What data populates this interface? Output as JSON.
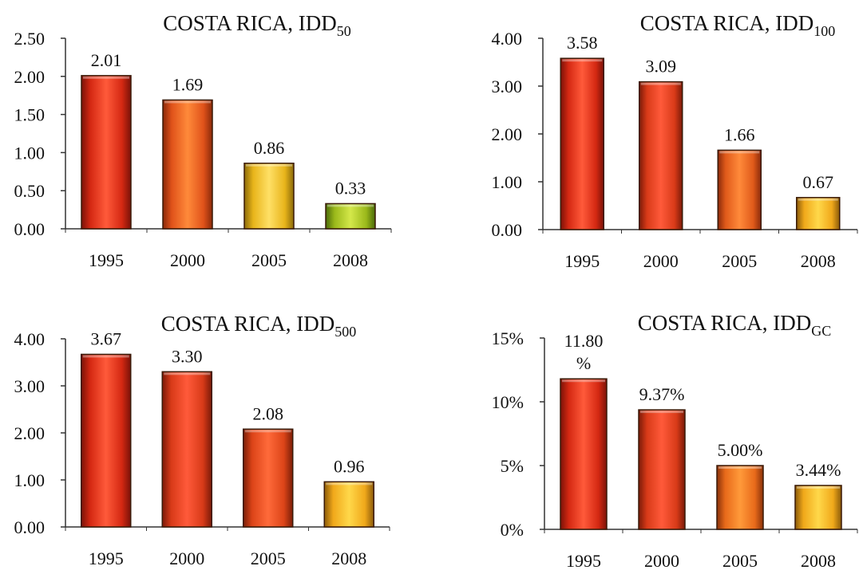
{
  "chart_data": [
    {
      "type": "bar",
      "title": "COSTA RICA, IDD",
      "title_subscript": "50",
      "categories": [
        "1995",
        "2000",
        "2005",
        "2008"
      ],
      "values": [
        2.01,
        1.69,
        0.86,
        0.33
      ],
      "value_labels": [
        "2.01",
        "1.69",
        "0.86",
        "0.33"
      ],
      "yticks": [
        0,
        0.5,
        1.0,
        1.5,
        2.0,
        2.5
      ],
      "ytick_labels": [
        "0.00",
        "0.50",
        "1.00",
        "1.50",
        "2.00",
        "2.50"
      ],
      "ylim": [
        0,
        2.5
      ],
      "grid": false,
      "bar_colors": [
        [
          "#ff5a3a",
          "#d42812",
          "#7a1208"
        ],
        [
          "#ff8a3a",
          "#e0521a",
          "#8a2a0a"
        ],
        [
          "#ffe066",
          "#e8b41a",
          "#8a6a0a"
        ],
        [
          "#d4e84a",
          "#9ab81a",
          "#4a6a0a"
        ]
      ]
    },
    {
      "type": "bar",
      "title": "COSTA RICA, IDD",
      "title_subscript": "100",
      "categories": [
        "1995",
        "2000",
        "2005",
        "2008"
      ],
      "values": [
        3.58,
        3.09,
        1.66,
        0.67
      ],
      "value_labels": [
        "3.58",
        "3.09",
        "1.66",
        "0.67"
      ],
      "yticks": [
        0,
        1,
        2,
        3,
        4
      ],
      "ytick_labels": [
        "0.00",
        "1.00",
        "2.00",
        "3.00",
        "4.00"
      ],
      "ylim": [
        0,
        4
      ],
      "grid": false,
      "bar_colors": [
        [
          "#ff5a3a",
          "#d42812",
          "#7a1208"
        ],
        [
          "#ff5a3a",
          "#d83a18",
          "#7a1a08"
        ],
        [
          "#ff8a3a",
          "#e05a1a",
          "#8a2a0a"
        ],
        [
          "#ffd84a",
          "#f0a81a",
          "#8a5a0a"
        ]
      ]
    },
    {
      "type": "bar",
      "title": "COSTA RICA, IDD",
      "title_subscript": "500",
      "categories": [
        "1995",
        "2000",
        "2005",
        "2008"
      ],
      "values": [
        3.67,
        3.3,
        2.08,
        0.96
      ],
      "value_labels": [
        "3.67",
        "3.30",
        "2.08",
        "0.96"
      ],
      "yticks": [
        0,
        1,
        2,
        3,
        4
      ],
      "ytick_labels": [
        "0.00",
        "1.00",
        "2.00",
        "3.00",
        "4.00"
      ],
      "ylim": [
        0,
        4
      ],
      "grid": false,
      "bar_colors": [
        [
          "#ff5a3a",
          "#d42812",
          "#7a1208"
        ],
        [
          "#ff5a3a",
          "#d83a18",
          "#7a1a08"
        ],
        [
          "#ff6a3a",
          "#dc4418",
          "#7a1e08"
        ],
        [
          "#ffd84a",
          "#f0a81a",
          "#8a5a0a"
        ]
      ]
    },
    {
      "type": "bar",
      "title": "COSTA RICA, IDD",
      "title_subscript": "GC",
      "categories": [
        "1995",
        "2000",
        "2005",
        "2008"
      ],
      "values": [
        11.8,
        9.37,
        5.0,
        3.44
      ],
      "value_labels": [
        "11.80\n%",
        "9.37%",
        "5.00%",
        "3.44%"
      ],
      "yticks": [
        0,
        5,
        10,
        15
      ],
      "ytick_labels": [
        "0%",
        "5%",
        "10%",
        "15%"
      ],
      "ylim": [
        0,
        15
      ],
      "grid": false,
      "bar_colors": [
        [
          "#ff5a3a",
          "#d42812",
          "#7a1208"
        ],
        [
          "#ff5a3a",
          "#d83a18",
          "#7a1a08"
        ],
        [
          "#ff9a3a",
          "#e86a1a",
          "#8a320a"
        ],
        [
          "#ffd84a",
          "#f0a81a",
          "#8a5a0a"
        ]
      ]
    }
  ]
}
